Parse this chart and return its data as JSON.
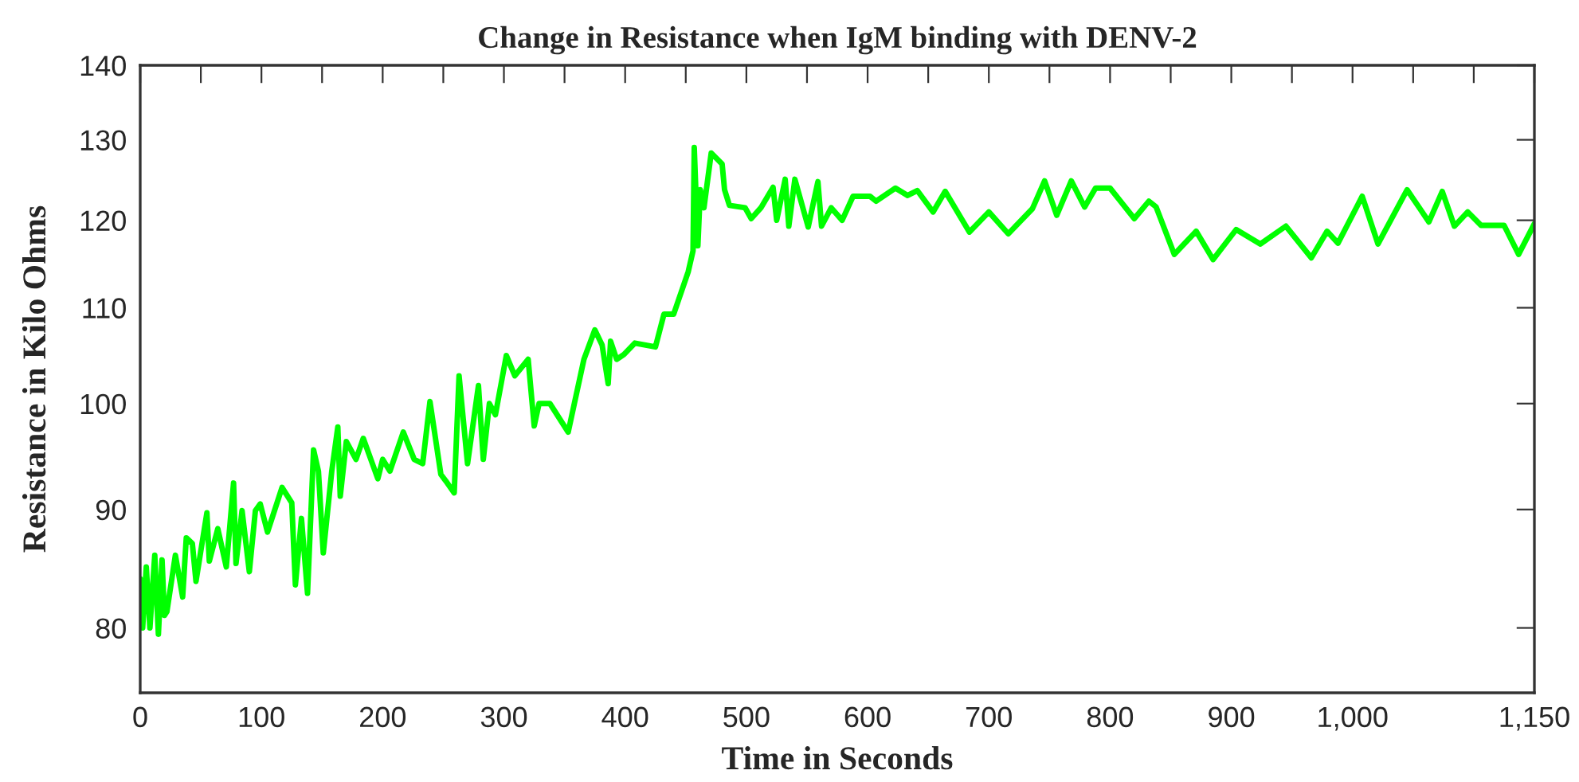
{
  "chart_data": {
    "type": "line",
    "title": "Change in Resistance when IgM binding with DENV-2",
    "xlabel": "Time in Seconds",
    "ylabel": "Resistance in Kilo Ohms",
    "log": true,
    "grid": false,
    "legend": false,
    "marker": "none",
    "line_style": "solid",
    "xlim": [
      0,
      1150
    ],
    "ylim": [
      75,
      140
    ],
    "xticks": [
      0,
      {
        "value": 50,
        "label": null
      },
      100,
      {
        "value": 150,
        "label": null
      },
      200,
      {
        "value": 250,
        "label": null
      },
      300,
      {
        "value": 350,
        "label": null
      },
      400,
      {
        "value": 450,
        "label": null
      },
      500,
      {
        "value": 550,
        "label": null
      },
      600,
      {
        "value": 650,
        "label": null
      },
      700,
      {
        "value": 750,
        "label": null
      },
      800,
      {
        "value": 850,
        "label": null
      },
      900,
      {
        "value": 950,
        "label": null
      },
      {
        "value": 1000,
        "label": "1,000"
      },
      {
        "value": 1050,
        "label": null
      },
      {
        "value": 1100,
        "label": null
      },
      {
        "value": 1150,
        "label": "1,150"
      }
    ],
    "yticks": [
      80,
      90,
      100,
      110,
      120,
      130,
      140
    ],
    "x": [
      0,
      2,
      5,
      8,
      12,
      15,
      18,
      20,
      22,
      29,
      35,
      38,
      43,
      46,
      55,
      57,
      64,
      71,
      77,
      79,
      84,
      90,
      95,
      99,
      105,
      117,
      125,
      128,
      133,
      138,
      143,
      147,
      151,
      158,
      163,
      165,
      170,
      178,
      184,
      196,
      200,
      206,
      217,
      226,
      233,
      239,
      248,
      252,
      259,
      263,
      270,
      279,
      283,
      288,
      293,
      302,
      309,
      320,
      325,
      329,
      338,
      353,
      366,
      375,
      381,
      386,
      388,
      393,
      399,
      408,
      425,
      432,
      440,
      452,
      456,
      457,
      460,
      462,
      465,
      471,
      480,
      482,
      486,
      499,
      504,
      512,
      522,
      525,
      532,
      535,
      540,
      551,
      559,
      562,
      570,
      579,
      588,
      602,
      607,
      623,
      633,
      641,
      654,
      664,
      684,
      700,
      716,
      736,
      746,
      756,
      768,
      779,
      788,
      800,
      820,
      832,
      838,
      853,
      871,
      885,
      904,
      924,
      945,
      966,
      979,
      988,
      1008,
      1021,
      1045,
      1063,
      1074,
      1084,
      1095,
      1106,
      1125,
      1137,
      1150
    ],
    "series": [
      {
        "color": "#00ff00",
        "values": [
          84,
          80,
          85,
          80,
          86,
          79.5,
          85.6,
          81,
          81.3,
          86,
          82.5,
          87.5,
          87,
          83.8,
          89.7,
          85.5,
          88.3,
          85,
          92.4,
          85.3,
          89.9,
          84.6,
          89.9,
          90.5,
          88,
          92,
          90.6,
          83.5,
          89.2,
          82.8,
          95.5,
          93.5,
          86.2,
          93.5,
          97.7,
          91.2,
          96.3,
          94.6,
          96.6,
          92.8,
          94.6,
          93.5,
          97.2,
          94.6,
          94.2,
          100.2,
          93.2,
          92.6,
          91.5,
          102.8,
          94.2,
          101.8,
          94.6,
          100,
          98.9,
          104.9,
          102.8,
          104.5,
          97.8,
          100,
          100,
          97.2,
          104.5,
          107.6,
          106,
          102,
          106.4,
          104.5,
          105,
          106.2,
          105.8,
          109.3,
          109.3,
          114,
          116.4,
          129,
          117,
          123.7,
          121.5,
          128.3,
          126.9,
          123.7,
          121.8,
          121.5,
          120.2,
          121.5,
          124,
          120,
          125,
          119.3,
          125,
          119.2,
          124.7,
          119.3,
          121.5,
          120,
          122.9,
          122.9,
          122.3,
          123.9,
          123,
          123.6,
          121,
          123.5,
          118.6,
          121,
          118.4,
          121.4,
          124.8,
          120.6,
          124.8,
          121.6,
          123.9,
          123.9,
          120.2,
          122.3,
          121.6,
          116,
          118.7,
          115.4,
          118.9,
          117.2,
          119.3,
          115.6,
          118.7,
          117.3,
          122.9,
          117.2,
          123.7,
          119.8,
          123.5,
          119.3,
          121,
          119.4,
          119.4,
          116,
          119.6
        ]
      }
    ]
  }
}
